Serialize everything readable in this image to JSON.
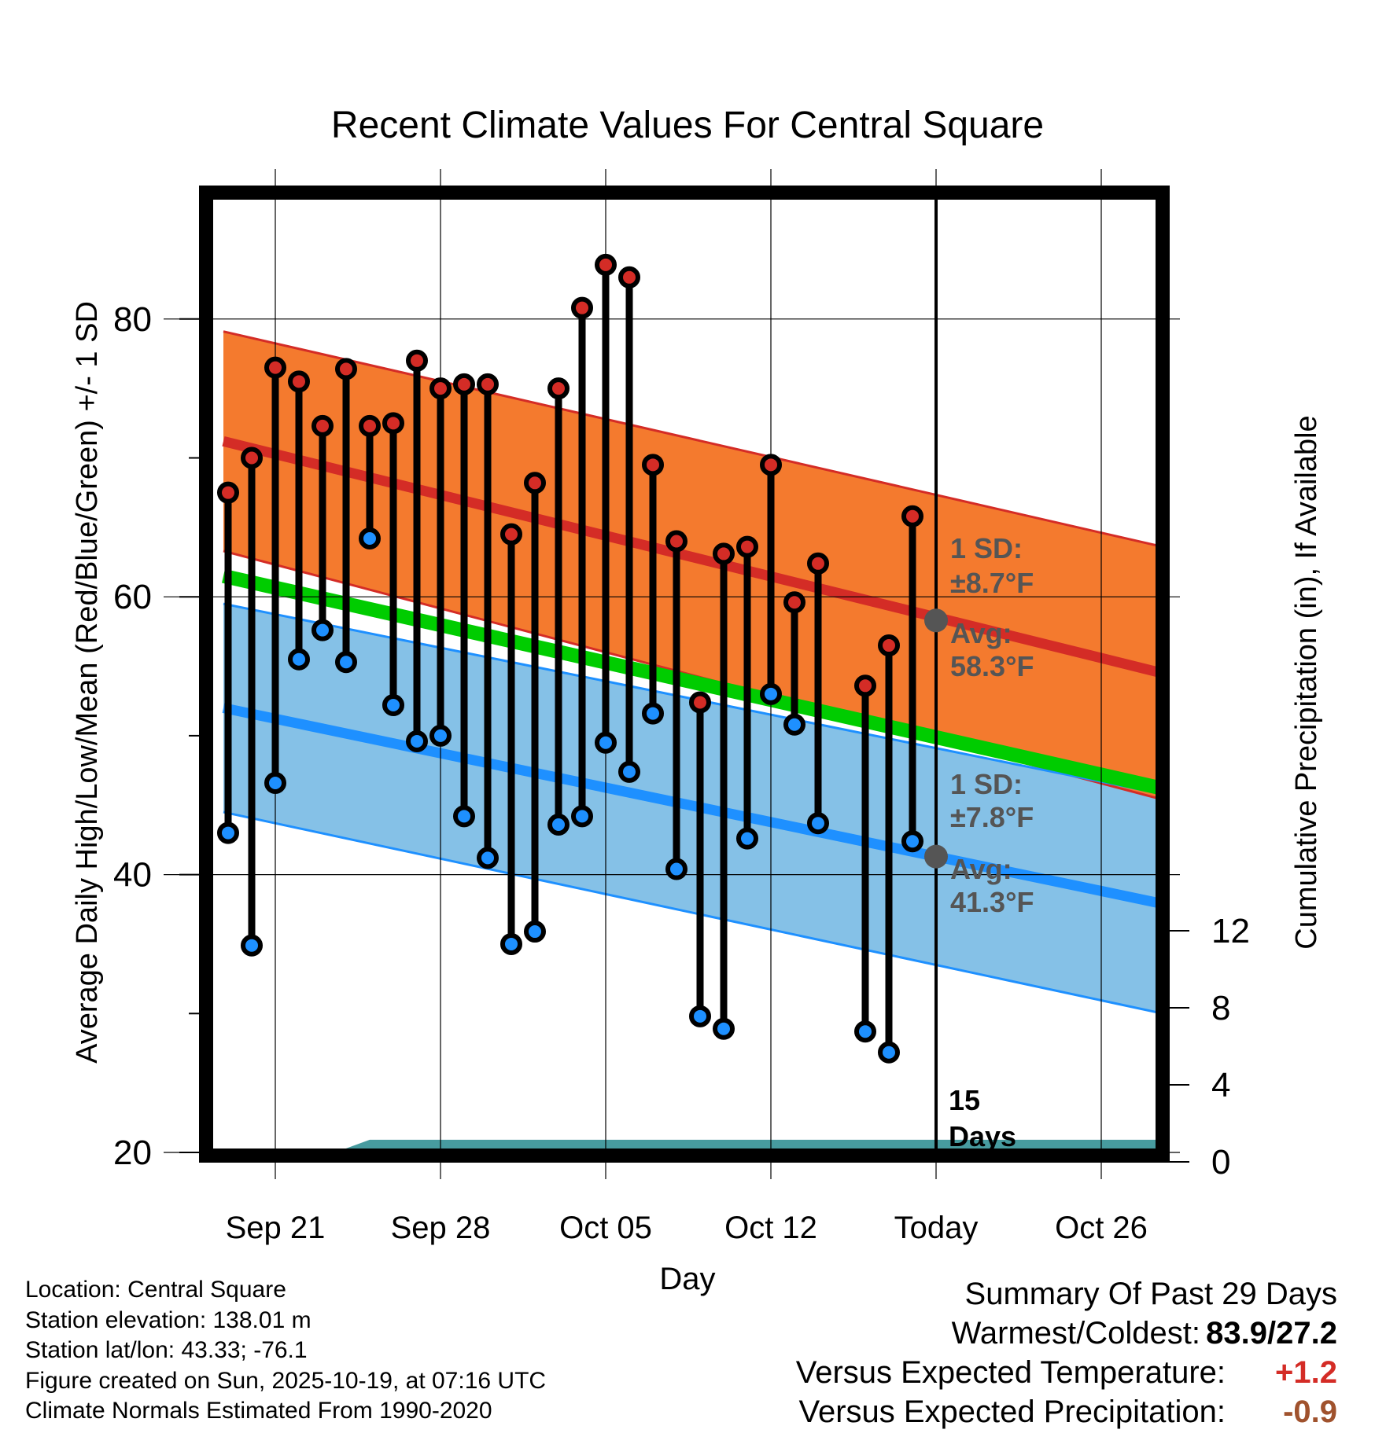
{
  "title": "Recent Climate Values For Central Square",
  "chart_data": {
    "type": "line",
    "title": "Recent Climate Values For Central Square",
    "xlabel": "Day",
    "ylabel": "Average Daily High/Low/Mean (Red/Blue/Green) +/- 1 SD",
    "y2label": "Cumulative Precipitation (in), If Available",
    "ylim": [
      19.5,
      89
    ],
    "y2lim": [
      0,
      24
    ],
    "xlim": [
      -2.2,
      37.6
    ],
    "yticks": [
      20,
      40,
      60,
      80
    ],
    "y2ticks": [
      0,
      4,
      8,
      12
    ],
    "x_ticks": [
      {
        "day": 0,
        "label": "Sep 21"
      },
      {
        "day": 7,
        "label": "Sep 28"
      },
      {
        "day": 14,
        "label": "Oct 05"
      },
      {
        "day": 21,
        "label": "Oct 12"
      },
      {
        "day": 28,
        "label": "Today"
      },
      {
        "day": 35,
        "label": "Oct 26"
      }
    ],
    "daily_highs": [
      67.5,
      70.0,
      76.5,
      75.5,
      72.3,
      76.4,
      72.3,
      72.5,
      77.0,
      75.0,
      75.3,
      75.3,
      64.5,
      68.2,
      75.0,
      80.8,
      83.9,
      83.0,
      69.5,
      64.0,
      52.4,
      63.1,
      63.6,
      69.5,
      59.6,
      62.4,
      53.6,
      56.5,
      65.8
    ],
    "daily_lows": [
      43.0,
      34.9,
      46.6,
      55.5,
      57.6,
      55.3,
      64.2,
      52.2,
      49.6,
      50.0,
      44.2,
      41.2,
      35.0,
      35.9,
      43.6,
      44.2,
      49.5,
      47.4,
      51.6,
      40.4,
      29.8,
      28.9,
      42.6,
      53.0,
      50.8,
      43.7,
      28.7,
      27.2,
      42.4
    ],
    "daily_days": [
      -2,
      -1,
      0,
      1,
      2,
      3,
      4,
      5,
      6,
      7,
      8,
      9,
      10,
      11,
      12,
      13,
      14,
      15,
      16,
      17,
      18,
      19,
      20,
      21,
      22,
      23,
      25,
      26,
      27
    ],
    "normal_high": {
      "start": 71.2,
      "end": 54.5,
      "sd_start": 7.9,
      "sd_end": 9.1
    },
    "normal_low": {
      "start": 52.0,
      "end": 37.9,
      "sd_start": 7.5,
      "sd_end": 7.9
    },
    "normal_mean": {
      "start": 61.5,
      "end": 46.2
    },
    "precip_cumulative": {
      "x": [
        -2.2,
        1.0,
        2.0,
        3.0,
        4.0,
        37.6
      ],
      "y": [
        0,
        0,
        0.5,
        0.7,
        1.15,
        1.15
      ]
    },
    "today_high_avg": 58.3,
    "today_low_avg": 41.3
  },
  "annotations": {
    "high_sd_label": "1 SD:",
    "high_sd_value": "±8.7°F",
    "high_avg_label": "Avg:",
    "high_avg_value": "58.3°F",
    "low_sd_label": "1 SD:",
    "low_sd_value": "±7.8°F",
    "low_avg_label": "Avg:",
    "low_avg_value": "41.3°F",
    "days_number": "15",
    "days_label": "Days"
  },
  "info": {
    "location": "Location: Central Square",
    "elevation": "Station elevation: 138.01 m",
    "latlon": "Station lat/lon: 43.33; -76.1",
    "created": "Figure created on Sun, 2025-10-19, at 07:16 UTC",
    "normals": "Climate Normals Estimated From 1990-2020"
  },
  "summary": {
    "heading": "Summary Of Past 29 Days",
    "warm_cold_label": "Warmest/Coldest:",
    "warm_cold_value": "83.9/27.2",
    "temp_label": "Versus Expected Temperature:",
    "temp_value": "+1.2",
    "precip_label": "Versus Expected Precipitation:",
    "precip_value": "-0.9"
  },
  "colors": {
    "high_band": "#f47a2e",
    "high_line": "#d42c26",
    "low_band": "#85c1e7",
    "low_line": "#1e90ff",
    "mean_line": "#00cc00",
    "precip": "#479b9f",
    "high_dot": "#d42c26",
    "low_dot": "#1e90ff",
    "annotation": "#555555",
    "temp_diff": "#d42c26",
    "precip_diff": "#a0522d"
  }
}
